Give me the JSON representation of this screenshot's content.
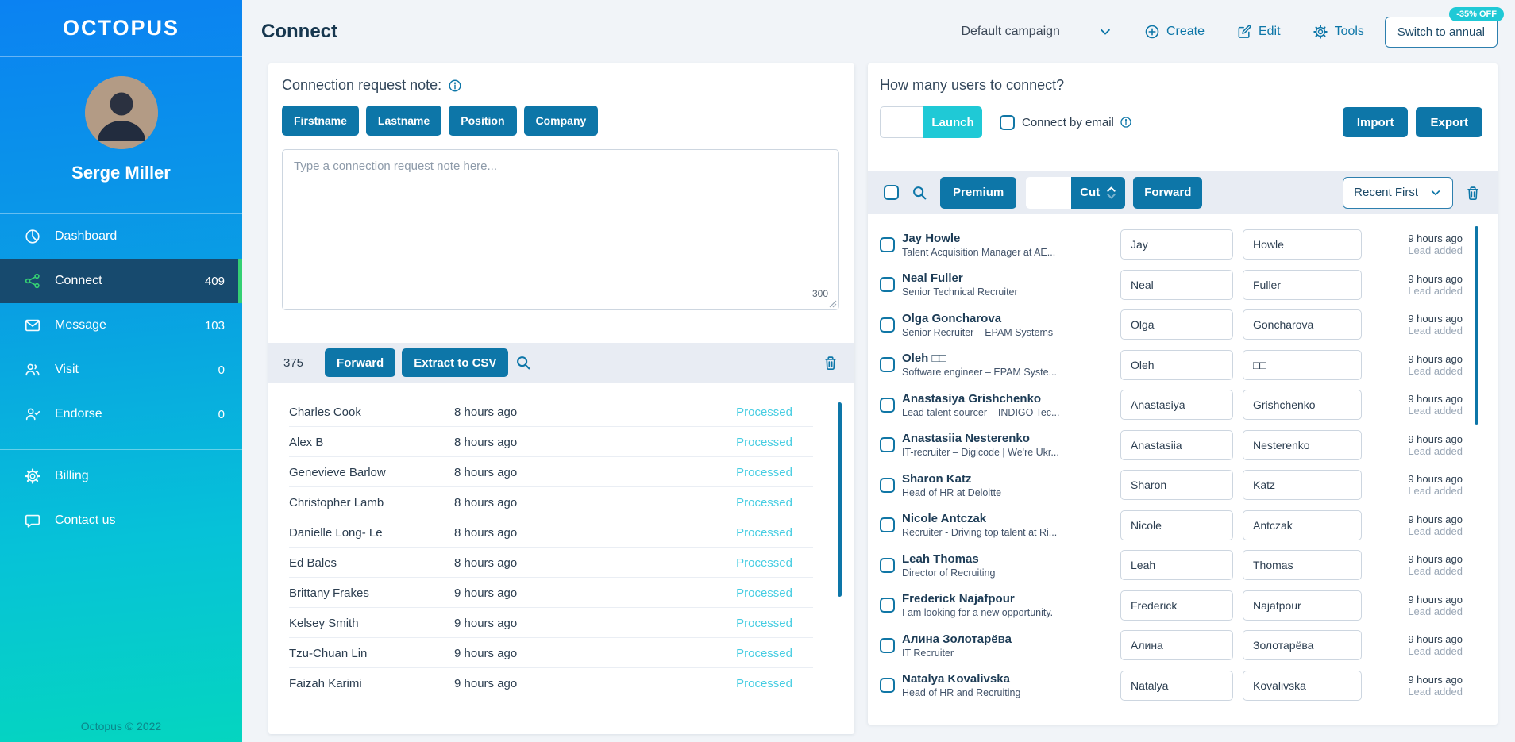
{
  "colors": {
    "primary_blue": "#0d76a8",
    "cyan_accent": "#1fc9d6",
    "sidebar_gradient_top": "#0b82f2",
    "sidebar_gradient_bottom": "#05d5c0",
    "active_item_bg": "#174a6e",
    "active_item_accent": "#35d073",
    "processed_status_color": "#47cde2"
  },
  "sidebar": {
    "logo": "OCTOPUS",
    "user_name": "Serge Miller",
    "items": [
      {
        "id": "dashboard",
        "label": "Dashboard",
        "icon": "dashboard-icon",
        "count": "",
        "active": false
      },
      {
        "id": "connect",
        "label": "Connect",
        "icon": "share-icon",
        "count": "409",
        "active": true
      },
      {
        "id": "message",
        "label": "Message",
        "icon": "envelope-icon",
        "count": "103",
        "active": false
      },
      {
        "id": "visit",
        "label": "Visit",
        "icon": "people-icon",
        "count": "0",
        "active": false
      },
      {
        "id": "endorse",
        "label": "Endorse",
        "icon": "person-check-icon",
        "count": "0",
        "active": false
      }
    ],
    "secondary_items": [
      {
        "id": "billing",
        "label": "Billing",
        "icon": "gear-icon"
      },
      {
        "id": "contact-us",
        "label": "Contact us",
        "icon": "chat-icon"
      }
    ],
    "footer": "Octopus © 2022"
  },
  "header": {
    "title": "Connect",
    "campaign_selector": "Default campaign",
    "create_label": "Create",
    "edit_label": "Edit",
    "tools_label": "Tools",
    "switch_button": "Switch to annual",
    "discount_badge": "-35% OFF"
  },
  "note_panel": {
    "title": "Connection request note:",
    "placeholder_buttons": [
      "Firstname",
      "Lastname",
      "Position",
      "Company"
    ],
    "textarea_placeholder": "Type a connection request note here...",
    "textarea_value": "",
    "char_limit": "300"
  },
  "processed_panel": {
    "count": "375",
    "forward_label": "Forward",
    "extract_label": "Extract to CSV",
    "rows": [
      {
        "name": "Charles Cook",
        "time": "8 hours ago",
        "status": "Processed"
      },
      {
        "name": "Alex B",
        "time": "8 hours ago",
        "status": "Processed"
      },
      {
        "name": "Genevieve Barlow",
        "time": "8 hours ago",
        "status": "Processed"
      },
      {
        "name": "Christopher Lamb",
        "time": "8 hours ago",
        "status": "Processed"
      },
      {
        "name": "Danielle Long- Le",
        "time": "8 hours ago",
        "status": "Processed"
      },
      {
        "name": "Ed Bales",
        "time": "8 hours ago",
        "status": "Processed"
      },
      {
        "name": "Brittany Frakes",
        "time": "9 hours ago",
        "status": "Processed"
      },
      {
        "name": "Kelsey Smith",
        "time": "9 hours ago",
        "status": "Processed"
      },
      {
        "name": "Tzu-Chuan Lin",
        "time": "9 hours ago",
        "status": "Processed"
      },
      {
        "name": "Faizah Karimi",
        "time": "9 hours ago",
        "status": "Processed"
      }
    ]
  },
  "connect_panel": {
    "title": "How many users to connect?",
    "launch_input_value": "",
    "launch_label": "Launch",
    "connect_by_email_label": "Connect by email",
    "import_label": "Import",
    "export_label": "Export",
    "premium_label": "Premium",
    "cut_input_value": "",
    "cut_label": "Cut",
    "forward_label": "Forward",
    "sort_selector": "Recent First",
    "rows": [
      {
        "name": "Jay Howle",
        "subtitle": "Talent Acquisition Manager at AE...",
        "first": "Jay",
        "last": "Howle",
        "time": "9 hours ago",
        "status": "Lead added"
      },
      {
        "name": "Neal Fuller",
        "subtitle": "Senior Technical Recruiter",
        "first": "Neal",
        "last": "Fuller",
        "time": "9 hours ago",
        "status": "Lead added"
      },
      {
        "name": "Olga Goncharova",
        "subtitle": "Senior Recruiter – EPAM Systems",
        "first": "Olga",
        "last": "Goncharova",
        "time": "9 hours ago",
        "status": "Lead added"
      },
      {
        "name": "Oleh □□",
        "subtitle": "Software engineer – EPAM Syste...",
        "first": "Oleh",
        "last": "□□",
        "time": "9 hours ago",
        "status": "Lead added"
      },
      {
        "name": "Anastasiya Grishchenko",
        "subtitle": "Lead talent sourcer – INDIGO Tec...",
        "first": "Anastasiya",
        "last": "Grishchenko",
        "time": "9 hours ago",
        "status": "Lead added"
      },
      {
        "name": "Anastasiia Nesterenko",
        "subtitle": "IT-recruiter – Digicode | We're Ukr...",
        "first": "Anastasiia",
        "last": "Nesterenko",
        "time": "9 hours ago",
        "status": "Lead added"
      },
      {
        "name": "Sharon Katz",
        "subtitle": "Head of HR at Deloitte",
        "first": "Sharon",
        "last": "Katz",
        "time": "9 hours ago",
        "status": "Lead added"
      },
      {
        "name": "Nicole Antczak",
        "subtitle": "Recruiter - Driving top talent at Ri...",
        "first": "Nicole",
        "last": "Antczak",
        "time": "9 hours ago",
        "status": "Lead added"
      },
      {
        "name": "Leah Thomas",
        "subtitle": "Director of Recruiting",
        "first": "Leah",
        "last": "Thomas",
        "time": "9 hours ago",
        "status": "Lead added"
      },
      {
        "name": "Frederick Najafpour",
        "subtitle": "I am looking for a new opportunity.",
        "first": "Frederick",
        "last": "Najafpour",
        "time": "9 hours ago",
        "status": "Lead added"
      },
      {
        "name": "Алина Золотарёва",
        "subtitle": "IT Recruiter",
        "first": "Алина",
        "last": "Золотарёва",
        "time": "9 hours ago",
        "status": "Lead added"
      },
      {
        "name": "Natalya Kovalivska",
        "subtitle": "Head of HR and Recruiting",
        "first": "Natalya",
        "last": "Kovalivska",
        "time": "9 hours ago",
        "status": "Lead added"
      }
    ]
  }
}
